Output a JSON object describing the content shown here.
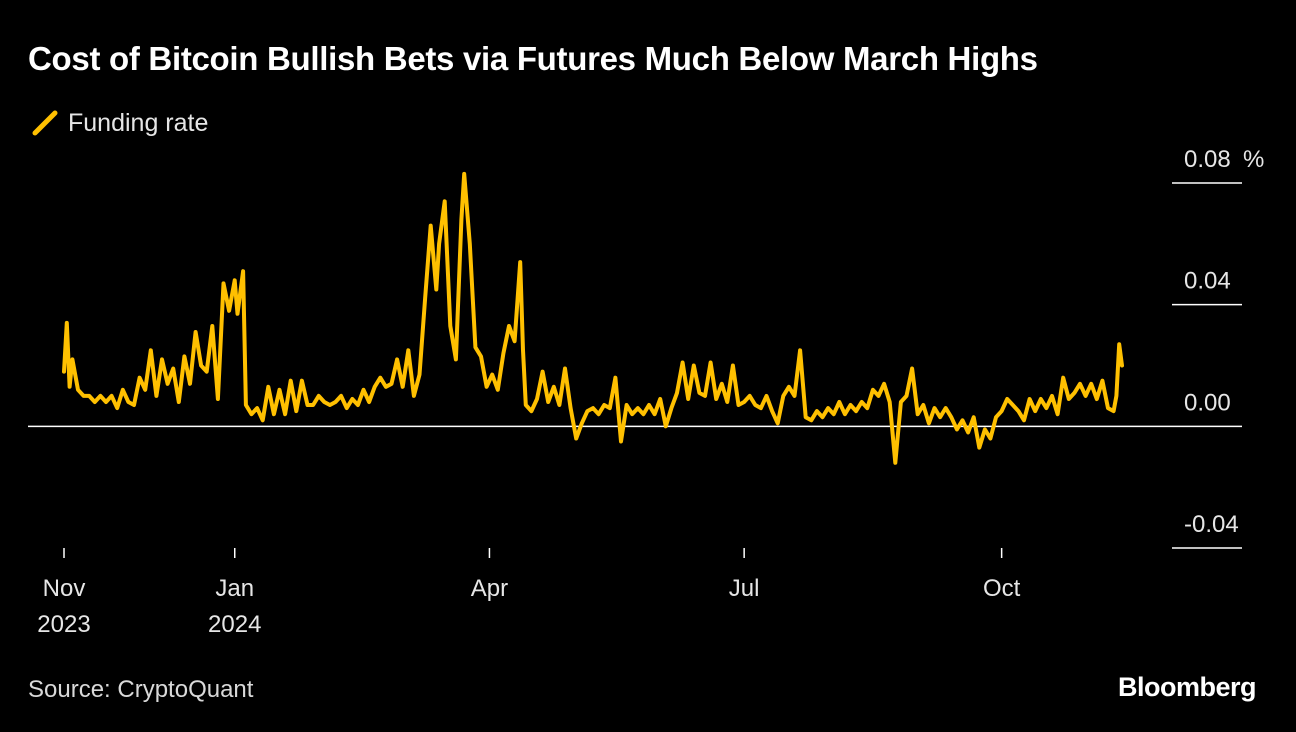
{
  "title": "Cost of Bitcoin Bullish Bets via Futures Much Below March Highs",
  "source": "Source: CryptoQuant",
  "brand": "Bloomberg",
  "colors": {
    "background": "#000000",
    "series": "#FFC000",
    "text": "#FFFFFF",
    "zero_line": "#FFFFFF"
  },
  "chart_data": {
    "type": "line",
    "title": "Cost of Bitcoin Bullish Bets via Futures Much Below March Highs",
    "ylabel": "",
    "xlabel": "",
    "ylim": [
      -0.04,
      0.08
    ],
    "y_unit": "%",
    "y_ticks": [
      {
        "value": 0.08,
        "label": "0.08"
      },
      {
        "value": 0.04,
        "label": "0.04"
      },
      {
        "value": 0.0,
        "label": "0.00"
      },
      {
        "value": -0.04,
        "label": "-0.04"
      }
    ],
    "y_axis_position": "right",
    "xlim": [
      "2023-11-01",
      "2024-11-13"
    ],
    "x_ticks": [
      {
        "date": "2023-11-01",
        "line1": "Nov",
        "line2": "2023"
      },
      {
        "date": "2024-01-01",
        "line1": "Jan",
        "line2": "2024"
      },
      {
        "date": "2024-04-01",
        "line1": "Apr",
        "line2": ""
      },
      {
        "date": "2024-07-01",
        "line1": "Jul",
        "line2": ""
      },
      {
        "date": "2024-10-01",
        "line1": "Oct",
        "line2": ""
      }
    ],
    "legend_position": "top-left",
    "grid": false,
    "series": [
      {
        "name": "Funding rate",
        "color": "#FFC000",
        "points": [
          [
            "2023-11-01",
            0.018
          ],
          [
            "2023-11-02",
            0.034
          ],
          [
            "2023-11-03",
            0.013
          ],
          [
            "2023-11-04",
            0.022
          ],
          [
            "2023-11-05",
            0.017
          ],
          [
            "2023-11-06",
            0.012
          ],
          [
            "2023-11-08",
            0.01
          ],
          [
            "2023-11-10",
            0.01
          ],
          [
            "2023-11-12",
            0.008
          ],
          [
            "2023-11-14",
            0.01
          ],
          [
            "2023-11-16",
            0.008
          ],
          [
            "2023-11-18",
            0.01
          ],
          [
            "2023-11-20",
            0.006
          ],
          [
            "2023-11-22",
            0.012
          ],
          [
            "2023-11-24",
            0.008
          ],
          [
            "2023-11-26",
            0.007
          ],
          [
            "2023-11-28",
            0.016
          ],
          [
            "2023-11-30",
            0.012
          ],
          [
            "2023-12-02",
            0.025
          ],
          [
            "2023-12-04",
            0.01
          ],
          [
            "2023-12-06",
            0.022
          ],
          [
            "2023-12-08",
            0.014
          ],
          [
            "2023-12-10",
            0.019
          ],
          [
            "2023-12-12",
            0.008
          ],
          [
            "2023-12-14",
            0.023
          ],
          [
            "2023-12-16",
            0.014
          ],
          [
            "2023-12-18",
            0.031
          ],
          [
            "2023-12-20",
            0.02
          ],
          [
            "2023-12-22",
            0.018
          ],
          [
            "2023-12-24",
            0.033
          ],
          [
            "2023-12-26",
            0.009
          ],
          [
            "2023-12-28",
            0.047
          ],
          [
            "2023-12-30",
            0.038
          ],
          [
            "2024-01-01",
            0.048
          ],
          [
            "2024-01-02",
            0.037
          ],
          [
            "2024-01-04",
            0.051
          ],
          [
            "2024-01-05",
            0.007
          ],
          [
            "2024-01-07",
            0.004
          ],
          [
            "2024-01-09",
            0.006
          ],
          [
            "2024-01-11",
            0.002
          ],
          [
            "2024-01-13",
            0.013
          ],
          [
            "2024-01-15",
            0.004
          ],
          [
            "2024-01-17",
            0.012
          ],
          [
            "2024-01-19",
            0.004
          ],
          [
            "2024-01-21",
            0.015
          ],
          [
            "2024-01-23",
            0.005
          ],
          [
            "2024-01-25",
            0.015
          ],
          [
            "2024-01-27",
            0.007
          ],
          [
            "2024-01-29",
            0.007
          ],
          [
            "2024-01-31",
            0.01
          ],
          [
            "2024-02-02",
            0.008
          ],
          [
            "2024-02-04",
            0.007
          ],
          [
            "2024-02-06",
            0.008
          ],
          [
            "2024-02-08",
            0.01
          ],
          [
            "2024-02-10",
            0.006
          ],
          [
            "2024-02-12",
            0.009
          ],
          [
            "2024-02-14",
            0.007
          ],
          [
            "2024-02-16",
            0.012
          ],
          [
            "2024-02-18",
            0.008
          ],
          [
            "2024-02-20",
            0.013
          ],
          [
            "2024-02-22",
            0.016
          ],
          [
            "2024-02-24",
            0.013
          ],
          [
            "2024-02-26",
            0.014
          ],
          [
            "2024-02-28",
            0.022
          ],
          [
            "2024-03-01",
            0.013
          ],
          [
            "2024-03-03",
            0.025
          ],
          [
            "2024-03-05",
            0.01
          ],
          [
            "2024-03-07",
            0.017
          ],
          [
            "2024-03-09",
            0.042
          ],
          [
            "2024-03-11",
            0.066
          ],
          [
            "2024-03-13",
            0.045
          ],
          [
            "2024-03-14",
            0.06
          ],
          [
            "2024-03-16",
            0.074
          ],
          [
            "2024-03-18",
            0.033
          ],
          [
            "2024-03-20",
            0.022
          ],
          [
            "2024-03-22",
            0.068
          ],
          [
            "2024-03-23",
            0.083
          ],
          [
            "2024-03-25",
            0.06
          ],
          [
            "2024-03-27",
            0.026
          ],
          [
            "2024-03-29",
            0.023
          ],
          [
            "2024-03-31",
            0.013
          ],
          [
            "2024-04-02",
            0.017
          ],
          [
            "2024-04-04",
            0.012
          ],
          [
            "2024-04-06",
            0.024
          ],
          [
            "2024-04-08",
            0.033
          ],
          [
            "2024-04-10",
            0.028
          ],
          [
            "2024-04-12",
            0.054
          ],
          [
            "2024-04-13",
            0.025
          ],
          [
            "2024-04-14",
            0.007
          ],
          [
            "2024-04-16",
            0.005
          ],
          [
            "2024-04-18",
            0.009
          ],
          [
            "2024-04-20",
            0.018
          ],
          [
            "2024-04-22",
            0.008
          ],
          [
            "2024-04-24",
            0.013
          ],
          [
            "2024-04-26",
            0.007
          ],
          [
            "2024-04-28",
            0.019
          ],
          [
            "2024-04-30",
            0.006
          ],
          [
            "2024-05-02",
            -0.004
          ],
          [
            "2024-05-04",
            0.001
          ],
          [
            "2024-05-06",
            0.005
          ],
          [
            "2024-05-08",
            0.006
          ],
          [
            "2024-05-10",
            0.004
          ],
          [
            "2024-05-12",
            0.007
          ],
          [
            "2024-05-14",
            0.006
          ],
          [
            "2024-05-16",
            0.016
          ],
          [
            "2024-05-18",
            -0.005
          ],
          [
            "2024-05-20",
            0.007
          ],
          [
            "2024-05-22",
            0.004
          ],
          [
            "2024-05-24",
            0.006
          ],
          [
            "2024-05-26",
            0.004
          ],
          [
            "2024-05-28",
            0.007
          ],
          [
            "2024-05-30",
            0.004
          ],
          [
            "2024-06-01",
            0.009
          ],
          [
            "2024-06-03",
            0.0
          ],
          [
            "2024-06-05",
            0.006
          ],
          [
            "2024-06-07",
            0.011
          ],
          [
            "2024-06-09",
            0.021
          ],
          [
            "2024-06-11",
            0.009
          ],
          [
            "2024-06-13",
            0.02
          ],
          [
            "2024-06-15",
            0.011
          ],
          [
            "2024-06-17",
            0.01
          ],
          [
            "2024-06-19",
            0.021
          ],
          [
            "2024-06-21",
            0.009
          ],
          [
            "2024-06-23",
            0.014
          ],
          [
            "2024-06-25",
            0.008
          ],
          [
            "2024-06-27",
            0.02
          ],
          [
            "2024-06-29",
            0.007
          ],
          [
            "2024-07-01",
            0.008
          ],
          [
            "2024-07-03",
            0.01
          ],
          [
            "2024-07-05",
            0.007
          ],
          [
            "2024-07-07",
            0.006
          ],
          [
            "2024-07-09",
            0.01
          ],
          [
            "2024-07-11",
            0.005
          ],
          [
            "2024-07-13",
            0.001
          ],
          [
            "2024-07-15",
            0.01
          ],
          [
            "2024-07-17",
            0.013
          ],
          [
            "2024-07-19",
            0.01
          ],
          [
            "2024-07-21",
            0.025
          ],
          [
            "2024-07-23",
            0.003
          ],
          [
            "2024-07-25",
            0.002
          ],
          [
            "2024-07-27",
            0.005
          ],
          [
            "2024-07-29",
            0.003
          ],
          [
            "2024-07-31",
            0.006
          ],
          [
            "2024-08-02",
            0.004
          ],
          [
            "2024-08-04",
            0.008
          ],
          [
            "2024-08-06",
            0.004
          ],
          [
            "2024-08-08",
            0.007
          ],
          [
            "2024-08-10",
            0.005
          ],
          [
            "2024-08-12",
            0.008
          ],
          [
            "2024-08-14",
            0.006
          ],
          [
            "2024-08-16",
            0.012
          ],
          [
            "2024-08-18",
            0.01
          ],
          [
            "2024-08-20",
            0.014
          ],
          [
            "2024-08-22",
            0.008
          ],
          [
            "2024-08-24",
            -0.012
          ],
          [
            "2024-08-26",
            0.008
          ],
          [
            "2024-08-28",
            0.01
          ],
          [
            "2024-08-30",
            0.019
          ],
          [
            "2024-09-01",
            0.004
          ],
          [
            "2024-09-03",
            0.007
          ],
          [
            "2024-09-05",
            0.001
          ],
          [
            "2024-09-07",
            0.006
          ],
          [
            "2024-09-09",
            0.003
          ],
          [
            "2024-09-11",
            0.006
          ],
          [
            "2024-09-13",
            0.003
          ],
          [
            "2024-09-15",
            -0.001
          ],
          [
            "2024-09-17",
            0.002
          ],
          [
            "2024-09-19",
            -0.002
          ],
          [
            "2024-09-21",
            0.003
          ],
          [
            "2024-09-23",
            -0.007
          ],
          [
            "2024-09-25",
            -0.001
          ],
          [
            "2024-09-27",
            -0.004
          ],
          [
            "2024-09-29",
            0.003
          ],
          [
            "2024-10-01",
            0.005
          ],
          [
            "2024-10-03",
            0.009
          ],
          [
            "2024-10-05",
            0.007
          ],
          [
            "2024-10-07",
            0.005
          ],
          [
            "2024-10-09",
            0.002
          ],
          [
            "2024-10-11",
            0.009
          ],
          [
            "2024-10-13",
            0.005
          ],
          [
            "2024-10-15",
            0.009
          ],
          [
            "2024-10-17",
            0.006
          ],
          [
            "2024-10-19",
            0.01
          ],
          [
            "2024-10-21",
            0.004
          ],
          [
            "2024-10-23",
            0.016
          ],
          [
            "2024-10-25",
            0.009
          ],
          [
            "2024-10-27",
            0.011
          ],
          [
            "2024-10-29",
            0.014
          ],
          [
            "2024-10-31",
            0.01
          ],
          [
            "2024-11-02",
            0.014
          ],
          [
            "2024-11-04",
            0.009
          ],
          [
            "2024-11-06",
            0.015
          ],
          [
            "2024-11-08",
            0.006
          ],
          [
            "2024-11-10",
            0.005
          ],
          [
            "2024-11-11",
            0.01
          ],
          [
            "2024-11-12",
            0.027
          ],
          [
            "2024-11-13",
            0.02
          ]
        ]
      }
    ]
  }
}
